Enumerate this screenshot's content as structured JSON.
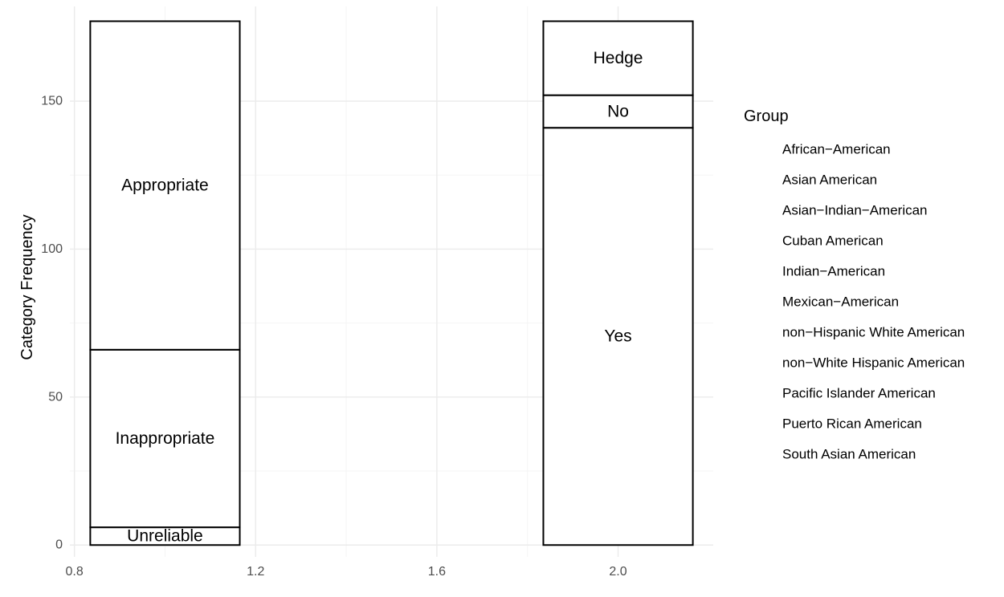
{
  "chart_data": {
    "type": "bar",
    "stacked": true,
    "xlabel": "",
    "ylabel": "Category Frequency",
    "xlim": [
      0.79,
      2.21
    ],
    "ylim": [
      -4,
      182
    ],
    "x_ticks": [
      0.8,
      1.2,
      1.6,
      2.0
    ],
    "x_tick_labels": [
      "0.8",
      "1.2",
      "1.6",
      "2.0"
    ],
    "y_ticks": [
      0,
      50,
      100,
      150
    ],
    "y_tick_labels": [
      "0",
      "50",
      "100",
      "150"
    ],
    "grid": true,
    "bar_width": 0.33,
    "bars": [
      {
        "x": 1,
        "segments": [
          {
            "label": "Unreliable",
            "value": 6
          },
          {
            "label": "Inappropriate",
            "value": 60
          },
          {
            "label": "Appropriate",
            "value": 111
          }
        ]
      },
      {
        "x": 2,
        "segments": [
          {
            "label": "Yes",
            "value": 141
          },
          {
            "label": "No",
            "value": 11
          },
          {
            "label": "Hedge",
            "value": 25
          }
        ]
      }
    ],
    "legend": {
      "title": "Group",
      "position": "right",
      "items": [
        "African−American",
        "Asian American",
        "Asian−Indian−American",
        "Cuban American",
        "Indian−American",
        "Mexican−American",
        "non−Hispanic White American",
        "non−White Hispanic American",
        "Pacific Islander American",
        "Puerto Rican American",
        "South Asian American"
      ]
    },
    "colors": {
      "bar_fill": "#ffffff",
      "bar_stroke": "#000000",
      "grid_major": "#ebebeb",
      "grid_minor": "#f5f5f5",
      "tick_text": "#4d4d4d"
    }
  }
}
